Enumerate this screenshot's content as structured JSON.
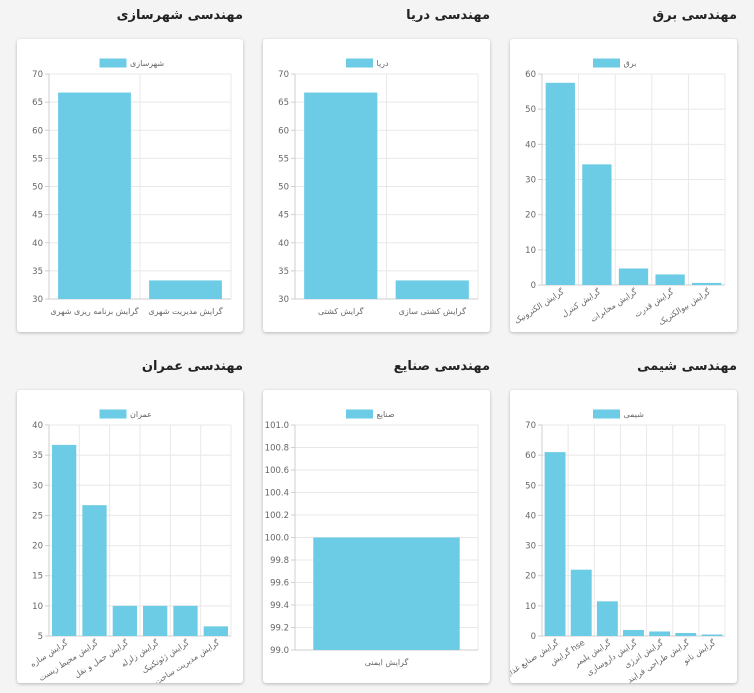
{
  "charts": [
    {
      "title": "مهندسی برق",
      "chart_data": {
        "type": "bar",
        "legend": "برق",
        "categories": [
          "گرایش الکترونیک",
          "گرایش کنترل",
          "گرایش مخابرات",
          "گرایش قدرت",
          "گرایش بیوالکتریک"
        ],
        "values": [
          57.5,
          34.3,
          4.7,
          3.0,
          0.6
        ],
        "ylim": [
          0,
          60
        ],
        "yticks": [
          0,
          10,
          20,
          30,
          40,
          50,
          60
        ],
        "rotate": true
      }
    },
    {
      "title": "مهندسی دریا",
      "chart_data": {
        "type": "bar",
        "legend": "دریا",
        "categories": [
          "گرایش کشتی",
          "گرایش کشتی سازی"
        ],
        "values": [
          66.7,
          33.3
        ],
        "ylim": [
          30,
          70
        ],
        "yticks": [
          30,
          35,
          40,
          45,
          50,
          55,
          60,
          65,
          70
        ],
        "rotate": false
      }
    },
    {
      "title": "مهندسی شهرسازی",
      "chart_data": {
        "type": "bar",
        "legend": "شهرسازی",
        "categories": [
          "گرایش برنامه ریزی شهری",
          "گرایش مدیریت شهری"
        ],
        "values": [
          66.7,
          33.3
        ],
        "ylim": [
          30,
          70
        ],
        "yticks": [
          30,
          35,
          40,
          45,
          50,
          55,
          60,
          65,
          70
        ],
        "rotate": false
      }
    },
    {
      "title": "مهندسی شیمی",
      "chart_data": {
        "type": "bar",
        "legend": "شیمی",
        "categories": [
          "گرایش صنایع غذایی",
          "گرایش hse",
          "گرایش پلیمر",
          "گرایش داروسازی",
          "گرایش انرژی",
          "گرایش طراحی فرایند",
          "گرایش نانو"
        ],
        "values": [
          61.0,
          22.0,
          11.5,
          2.0,
          1.5,
          1.0,
          0.5
        ],
        "ylim": [
          0,
          70
        ],
        "yticks": [
          0,
          10,
          20,
          30,
          40,
          50,
          60,
          70
        ],
        "rotate": true
      }
    },
    {
      "title": "مهندسی صنایع",
      "chart_data": {
        "type": "bar",
        "legend": "صنایع",
        "categories": [
          "گرایش ایمنی"
        ],
        "values": [
          100.0
        ],
        "ylim": [
          99.0,
          101.0
        ],
        "yticks": [
          99.0,
          99.2,
          99.4,
          99.6,
          99.8,
          100.0,
          100.2,
          100.4,
          100.6,
          100.8,
          101.0
        ],
        "rotate": false
      }
    },
    {
      "title": "مهندسی عمران",
      "chart_data": {
        "type": "bar",
        "legend": "عمران",
        "categories": [
          "گرایش سازه",
          "گرایش محیط زیست",
          "گرایش حمل و نقل",
          "گرایش زلزله",
          "گرایش ژئوتکنیک",
          "گرایش مدیریت ساخت"
        ],
        "values": [
          36.7,
          26.7,
          10.0,
          10.0,
          10.0,
          6.6
        ],
        "ylim": [
          5,
          40
        ],
        "yticks": [
          5,
          10,
          15,
          20,
          25,
          30,
          35,
          40
        ],
        "rotate": true
      }
    }
  ]
}
